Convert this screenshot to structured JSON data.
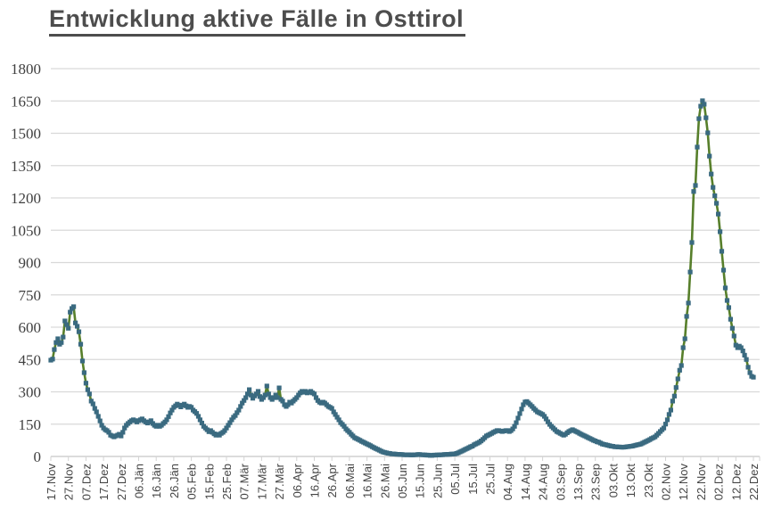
{
  "page": {
    "title": "Entwicklung aktive Fälle in Osttirol"
  },
  "chart_data": {
    "type": "line",
    "title": "Entwicklung aktive Fälle in Osttirol",
    "series_name": "aktive Fälle",
    "legend": "none",
    "grid": "horizontal",
    "ylim": [
      0,
      1800
    ],
    "y_ticks": [
      0,
      150,
      300,
      450,
      600,
      750,
      900,
      1050,
      1200,
      1350,
      1500,
      1650,
      1800
    ],
    "x_tick_interval_days": 10,
    "x_tick_labels": [
      "17.Nov",
      "27.Nov",
      "07.Dez",
      "17.Dez",
      "27.Dez",
      "06.Jän",
      "16.Jän",
      "26.Jän",
      "05.Feb",
      "15.Feb",
      "25.Feb",
      "07.Mär",
      "17.Mär",
      "27.Mär",
      "06.Apr",
      "16.Apr",
      "26.Apr",
      "06.Mai",
      "16.Mai",
      "26.Mai",
      "05.Jun",
      "15.Jun",
      "25.Jun",
      "05.Jul",
      "15.Jul",
      "25.Jul",
      "04.Aug",
      "14.Aug",
      "24.Aug",
      "03.Sep",
      "13.Sep",
      "23.Sep",
      "03.Okt",
      "13.Okt",
      "23.Okt",
      "02.Nov",
      "12.Nov",
      "22.Nov",
      "02.Dez",
      "12.Dez",
      "22.Dez"
    ],
    "values": [
      447,
      452,
      496,
      529,
      546,
      521,
      529,
      554,
      629,
      612,
      595,
      670,
      687,
      695,
      620,
      604,
      579,
      521,
      443,
      389,
      340,
      310,
      290,
      257,
      244,
      223,
      207,
      186,
      165,
      145,
      132,
      124,
      120,
      112,
      99,
      95,
      91,
      95,
      99,
      103,
      95,
      112,
      132,
      145,
      153,
      160,
      166,
      170,
      166,
      160,
      166,
      170,
      174,
      166,
      160,
      155,
      160,
      166,
      153,
      145,
      140,
      145,
      140,
      145,
      153,
      160,
      170,
      185,
      202,
      215,
      228,
      235,
      243,
      238,
      230,
      238,
      243,
      235,
      228,
      232,
      228,
      215,
      208,
      200,
      186,
      170,
      155,
      140,
      132,
      124,
      115,
      120,
      112,
      105,
      99,
      103,
      99,
      107,
      112,
      120,
      132,
      145,
      157,
      170,
      182,
      190,
      203,
      215,
      232,
      248,
      260,
      273,
      290,
      310,
      285,
      270,
      281,
      290,
      302,
      278,
      265,
      273,
      285,
      327,
      290,
      273,
      265,
      273,
      285,
      273,
      318,
      265,
      257,
      240,
      232,
      240,
      252,
      248,
      257,
      265,
      273,
      285,
      295,
      302,
      298,
      302,
      295,
      298,
      302,
      295,
      290,
      273,
      260,
      252,
      248,
      252,
      248,
      240,
      232,
      228,
      223,
      207,
      195,
      182,
      170,
      157,
      149,
      140,
      128,
      120,
      112,
      103,
      95,
      87,
      83,
      79,
      75,
      70,
      66,
      62,
      58,
      54,
      50,
      45,
      41,
      37,
      33,
      29,
      25,
      21,
      19,
      17,
      15,
      14,
      12,
      12,
      11,
      10,
      10,
      9,
      9,
      8,
      8,
      8,
      8,
      7,
      7,
      8,
      8,
      9,
      9,
      8,
      8,
      7,
      6,
      6,
      5,
      5,
      6,
      6,
      7,
      7,
      8,
      8,
      9,
      9,
      10,
      10,
      11,
      11,
      12,
      14,
      17,
      21,
      25,
      29,
      33,
      37,
      41,
      45,
      48,
      54,
      58,
      62,
      66,
      72,
      79,
      87,
      95,
      99,
      103,
      107,
      112,
      116,
      120,
      120,
      118,
      116,
      118,
      120,
      120,
      116,
      120,
      128,
      140,
      157,
      178,
      199,
      220,
      240,
      253,
      255,
      248,
      240,
      232,
      223,
      215,
      207,
      203,
      199,
      195,
      186,
      174,
      161,
      149,
      140,
      132,
      124,
      116,
      112,
      107,
      103,
      99,
      103,
      110,
      116,
      120,
      124,
      120,
      116,
      112,
      107,
      103,
      99,
      95,
      91,
      87,
      83,
      79,
      75,
      72,
      68,
      66,
      62,
      58,
      56,
      54,
      52,
      50,
      48,
      47,
      45,
      45,
      44,
      44,
      43,
      43,
      44,
      45,
      46,
      47,
      48,
      50,
      52,
      54,
      56,
      58,
      62,
      66,
      70,
      74,
      78,
      83,
      87,
      91,
      99,
      107,
      116,
      124,
      132,
      150,
      170,
      195,
      215,
      257,
      280,
      320,
      360,
      400,
      422,
      505,
      546,
      650,
      712,
      856,
      993,
      1230,
      1258,
      1436,
      1568,
      1626,
      1651,
      1635,
      1572,
      1502,
      1394,
      1311,
      1249,
      1210,
      1175,
      1125,
      1043,
      952,
      865,
      782,
      724,
      691,
      637,
      595,
      559,
      517,
      505,
      512,
      505,
      490,
      470,
      450,
      414,
      389,
      372,
      368
    ],
    "style": {
      "line_color": "#577f2b",
      "marker_color": "#3a6a80",
      "marker_shape": "square",
      "grid_color": "#d9d9d9",
      "axis_color": "#c6c6c6",
      "tick_color": "#d3d3d3",
      "label_color": "#404040",
      "title_color": "#4d4d4d",
      "background": "#ffffff"
    }
  }
}
